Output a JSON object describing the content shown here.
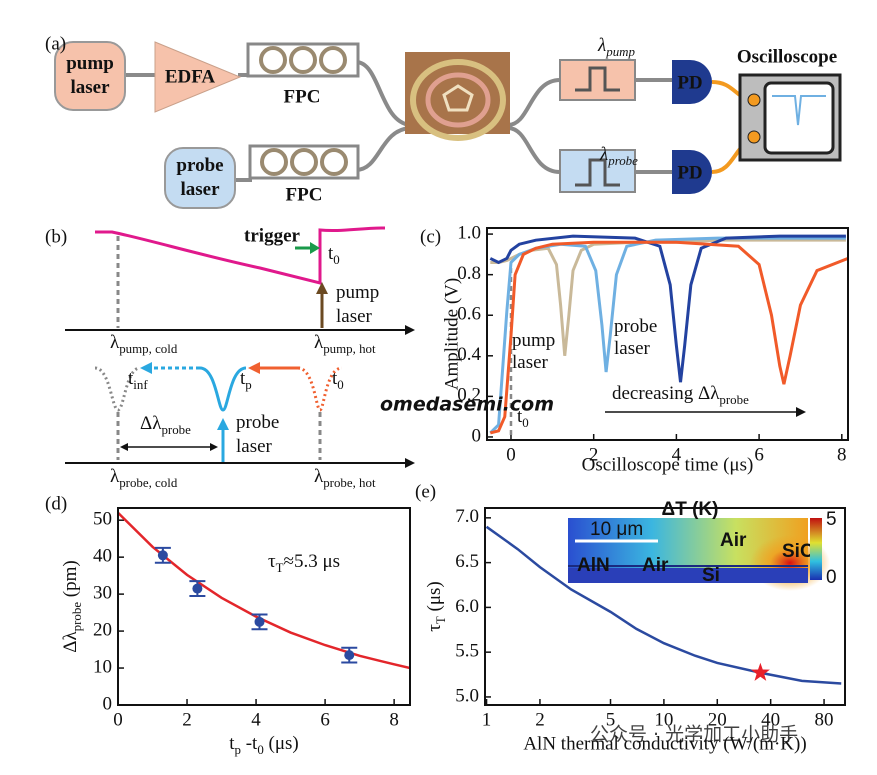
{
  "panel_a": {
    "label": "(a)",
    "pump_laser": [
      "pump",
      "laser"
    ],
    "edfa": "EDFA",
    "fpc_top": "FPC",
    "probe_laser": [
      "probe",
      "laser"
    ],
    "fpc_bottom": "FPC",
    "filter_pump": [
      {
        "text": "λ"
      },
      {
        "text": "pump",
        "sub": true
      }
    ],
    "filter_probe": [
      {
        "text": "λ"
      },
      {
        "text": "probe",
        "sub": true
      }
    ],
    "pd_top": "PD",
    "pd_bottom": "PD",
    "oscilloscope": "Oscilloscope"
  },
  "panel_b": {
    "label": "(b)",
    "trigger": "trigger",
    "t0_top": [
      {
        "text": "t"
      },
      {
        "text": "0",
        "sub": true
      }
    ],
    "pump_laser": [
      "pump",
      "laser"
    ],
    "pump_cold": [
      {
        "text": "λ"
      },
      {
        "text": "pump, cold",
        "sub": true
      }
    ],
    "pump_hot": [
      {
        "text": "λ"
      },
      {
        "text": "pump, hot",
        "sub": true
      }
    ],
    "t_inf": [
      {
        "text": "t"
      },
      {
        "text": "inf",
        "sub": true
      }
    ],
    "t_p": [
      {
        "text": "t"
      },
      {
        "text": "p",
        "sub": true
      }
    ],
    "t0_mid": [
      {
        "text": "t"
      },
      {
        "text": "0",
        "sub": true
      }
    ],
    "delta": [
      {
        "text": "Δλ"
      },
      {
        "text": "probe",
        "sub": true
      }
    ],
    "probe_laser": [
      "probe",
      "laser"
    ],
    "probe_cold": [
      {
        "text": "λ"
      },
      {
        "text": "probe, cold",
        "sub": true
      }
    ],
    "probe_hot": [
      {
        "text": "λ"
      },
      {
        "text": "probe, hot",
        "sub": true
      }
    ]
  },
  "watermarks": [
    "omedasemi.com",
    "公众号 · 光学加工小助手"
  ],
  "chart_data": [
    {
      "type": "line",
      "panel_label": "(c)",
      "ylabel": "Amplitude (V)",
      "xlabel": "Oscilloscope time (μs)",
      "xlim": [
        -0.58,
        8.15
      ],
      "ylim": [
        -0.015,
        1.03
      ],
      "xticks": [
        0,
        2,
        4,
        6,
        8
      ],
      "yticks": [
        0,
        0.2,
        0.4,
        0.6,
        0.8,
        {
          "value": 1,
          "label": "1.0"
        }
      ],
      "vline": 0,
      "pump_label": [
        "pump",
        "laser"
      ],
      "probe_label": [
        "probe",
        "laser"
      ],
      "arrow_label": [
        {
          "text": "decreasing Δλ"
        },
        {
          "text": "probe",
          "sub": true
        }
      ],
      "t0_label": [
        {
          "text": "t"
        },
        {
          "text": "0",
          "sub": true
        }
      ],
      "series": [
        {
          "color": "#c9b999",
          "x": [
            -0.5,
            -0.3,
            -0.1,
            0,
            0.2,
            0.5,
            0.9,
            1.1,
            1.2,
            1.3,
            1.4,
            1.5,
            1.7,
            2.0,
            3,
            4,
            5,
            6,
            7,
            8.1
          ],
          "values": [
            0.86,
            0.86,
            0.87,
            0.88,
            0.9,
            0.92,
            0.93,
            0.85,
            0.65,
            0.4,
            0.6,
            0.82,
            0.92,
            0.95,
            0.96,
            0.96,
            0.97,
            0.97,
            0.97,
            0.97
          ]
        },
        {
          "color": "#6fb0e2",
          "x": [
            -0.5,
            -0.3,
            -0.1,
            0,
            0.2,
            0.6,
            1.2,
            1.8,
            2.05,
            2.2,
            2.3,
            2.4,
            2.55,
            2.8,
            3.5,
            5,
            6.5,
            8.1
          ],
          "values": [
            0.02,
            0.06,
            0.62,
            0.86,
            0.9,
            0.93,
            0.95,
            0.94,
            0.82,
            0.55,
            0.32,
            0.5,
            0.8,
            0.94,
            0.97,
            0.98,
            0.98,
            0.98
          ]
        },
        {
          "color": "#2342a0",
          "x": [
            -0.5,
            -0.3,
            -0.1,
            0,
            0.2,
            0.6,
            1.5,
            3,
            3.6,
            3.85,
            4.0,
            4.1,
            4.2,
            4.35,
            4.6,
            5.2,
            6.5,
            8.1
          ],
          "values": [
            0.88,
            0.86,
            0.88,
            0.92,
            0.95,
            0.97,
            0.99,
            0.98,
            0.94,
            0.75,
            0.45,
            0.27,
            0.45,
            0.75,
            0.93,
            0.98,
            0.99,
            0.99
          ]
        },
        {
          "color": "#f15a29",
          "x": [
            -0.5,
            -0.3,
            -0.15,
            0,
            0.1,
            0.3,
            0.6,
            1,
            2,
            4,
            5.5,
            6.0,
            6.3,
            6.5,
            6.6,
            6.75,
            7.0,
            7.4,
            8.15
          ],
          "values": [
            0.02,
            0.03,
            0.1,
            0.5,
            0.8,
            0.9,
            0.93,
            0.95,
            0.96,
            0.96,
            0.94,
            0.85,
            0.6,
            0.35,
            0.26,
            0.4,
            0.65,
            0.82,
            0.88
          ]
        }
      ]
    },
    {
      "type": "scatter",
      "panel_label": "(d)",
      "ylabel": [
        {
          "text": "Δλ"
        },
        {
          "text": "probe",
          "sub": true
        },
        {
          "text": " (pm)"
        }
      ],
      "xlabel": [
        {
          "text": "t"
        },
        {
          "text": "p",
          "sub": true
        },
        {
          "text": " -t"
        },
        {
          "text": "0",
          "sub": true
        },
        {
          "text": " (μs)"
        }
      ],
      "annotation": [
        {
          "text": "τ"
        },
        {
          "text": "T",
          "sub": true
        },
        {
          "text": "≈5.3 μs"
        }
      ],
      "xlim": [
        0,
        8.46
      ],
      "ylim": [
        0,
        53.3
      ],
      "xticks": [
        0,
        2,
        4,
        6,
        8
      ],
      "yticks": [
        0,
        10,
        20,
        30,
        40,
        50
      ],
      "series": [
        {
          "type": "line",
          "color": "#e3262b",
          "x": [
            0,
            1,
            2,
            3,
            4,
            5,
            6,
            7,
            8,
            8.46
          ],
          "values": [
            52,
            42.8,
            35.2,
            29.0,
            23.9,
            19.6,
            16.2,
            13.3,
            11.0,
            10.0
          ]
        },
        {
          "type": "errorbar",
          "color": "#2b4aa0",
          "x": [
            1.3,
            2.3,
            4.1,
            6.7
          ],
          "values": [
            40.5,
            31.5,
            22.5,
            13.5
          ],
          "errors": [
            2,
            2,
            2,
            2
          ]
        }
      ]
    },
    {
      "type": "line",
      "panel_label": "(e)",
      "ylabel": [
        {
          "text": "τ"
        },
        {
          "text": "T",
          "sub": true
        },
        {
          "text": " (μs)"
        }
      ],
      "xlabel": "AlN thermal conductivity (W/(m·K))",
      "xlog": true,
      "xlim": [
        0.98,
        105
      ],
      "ylim": [
        4.91,
        7.11
      ],
      "xticks": [
        1,
        2,
        5,
        10,
        20,
        40,
        80
      ],
      "yticks": [
        {
          "value": 5,
          "label": "5.0"
        },
        5.5,
        {
          "value": 6,
          "label": "6.0"
        },
        6.5,
        {
          "value": 7,
          "label": "7.0"
        }
      ],
      "series": [
        {
          "color": "#2b4aa0",
          "x": [
            1,
            1.5,
            2,
            3,
            5,
            7,
            10,
            15,
            20,
            35,
            60,
            100
          ],
          "values": [
            6.9,
            6.65,
            6.45,
            6.2,
            5.95,
            5.76,
            5.6,
            5.46,
            5.38,
            5.27,
            5.18,
            5.15
          ]
        }
      ],
      "marker": {
        "x": 35,
        "y": 5.27,
        "color": "#e8202a"
      },
      "inset": {
        "title": "ΔT (K)",
        "scale_bar": "10 μm",
        "labels": [
          "Air",
          "Air",
          "AlN",
          "SiC",
          "Si"
        ],
        "colorbar_ticks": [
          0,
          5
        ]
      }
    }
  ]
}
